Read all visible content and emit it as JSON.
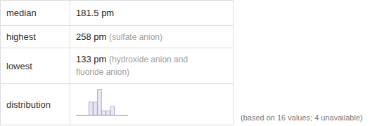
{
  "table": {
    "rows": [
      {
        "label": "median",
        "value": "181.5 pm"
      },
      {
        "label": "highest",
        "value": "258 pm",
        "note": "(sulfate anion)"
      },
      {
        "label": "lowest",
        "value": "133 pm",
        "note": "(hydroxide anion and fluoride anion)"
      },
      {
        "label": "distribution"
      }
    ]
  },
  "chart_data": {
    "type": "histogram",
    "bins": [
      125,
      150,
      175,
      200,
      225,
      250,
      275
    ],
    "values": [
      3,
      3,
      6,
      1,
      1,
      2
    ],
    "color": "#e8e8f4",
    "xlim": [
      125,
      275
    ],
    "ylim": [
      0,
      6
    ],
    "grid": false,
    "tick_labels": false
  },
  "footnote": "(based on 16 values; 4 unavailable)"
}
